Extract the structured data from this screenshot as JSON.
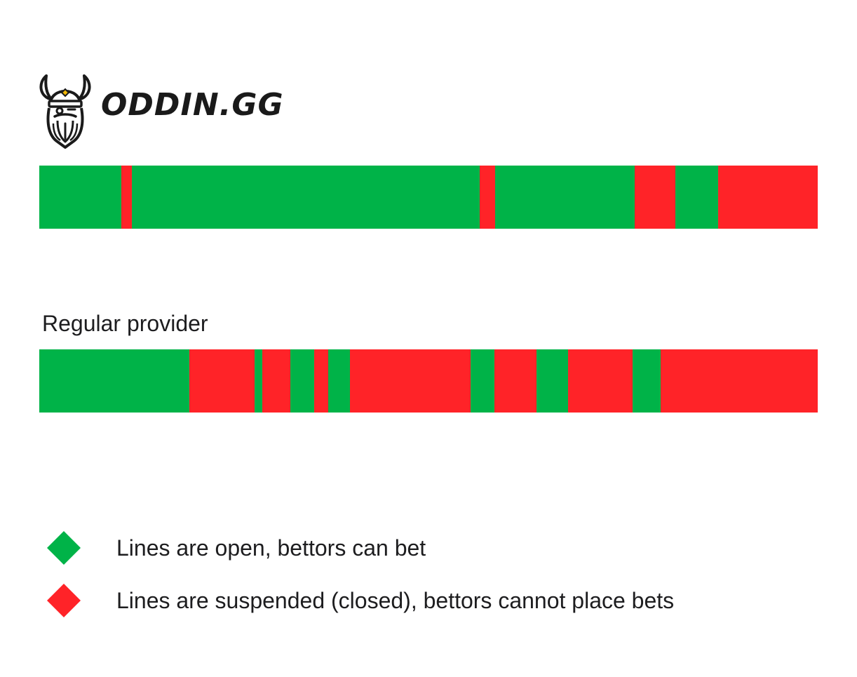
{
  "logo": {
    "wordmark": "ODDIN.GG",
    "icon": "viking-head-icon"
  },
  "colors": {
    "open": "#00b348",
    "closed": "#ff2328",
    "text": "#1d1d1f"
  },
  "bars": {
    "scale_max": 1110,
    "top": {
      "label": "",
      "segments": [
        {
          "status": "open",
          "start": 0,
          "end": 117
        },
        {
          "status": "closed",
          "start": 117,
          "end": 132
        },
        {
          "status": "open",
          "start": 132,
          "end": 628
        },
        {
          "status": "closed",
          "start": 628,
          "end": 650
        },
        {
          "status": "open",
          "start": 650,
          "end": 849
        },
        {
          "status": "closed",
          "start": 849,
          "end": 907
        },
        {
          "status": "open",
          "start": 907,
          "end": 968
        },
        {
          "status": "closed",
          "start": 968,
          "end": 1110
        }
      ]
    },
    "bottom": {
      "label": "Regular provider",
      "segments": [
        {
          "status": "open",
          "start": 0,
          "end": 214
        },
        {
          "status": "closed",
          "start": 214,
          "end": 307
        },
        {
          "status": "open",
          "start": 307,
          "end": 318
        },
        {
          "status": "closed",
          "start": 318,
          "end": 358
        },
        {
          "status": "open",
          "start": 358,
          "end": 392
        },
        {
          "status": "closed",
          "start": 392,
          "end": 412
        },
        {
          "status": "open",
          "start": 412,
          "end": 443
        },
        {
          "status": "closed",
          "start": 443,
          "end": 615
        },
        {
          "status": "open",
          "start": 615,
          "end": 649
        },
        {
          "status": "closed",
          "start": 649,
          "end": 709
        },
        {
          "status": "open",
          "start": 709,
          "end": 754
        },
        {
          "status": "closed",
          "start": 754,
          "end": 846
        },
        {
          "status": "open",
          "start": 846,
          "end": 886
        },
        {
          "status": "closed",
          "start": 886,
          "end": 1110
        }
      ]
    }
  },
  "legend": {
    "open": {
      "text": "Lines are open, bettors can bet",
      "icon": "green-diamond-icon"
    },
    "closed": {
      "text": "Lines are suspended (closed), bettors cannot place bets",
      "icon": "red-diamond-icon"
    }
  }
}
